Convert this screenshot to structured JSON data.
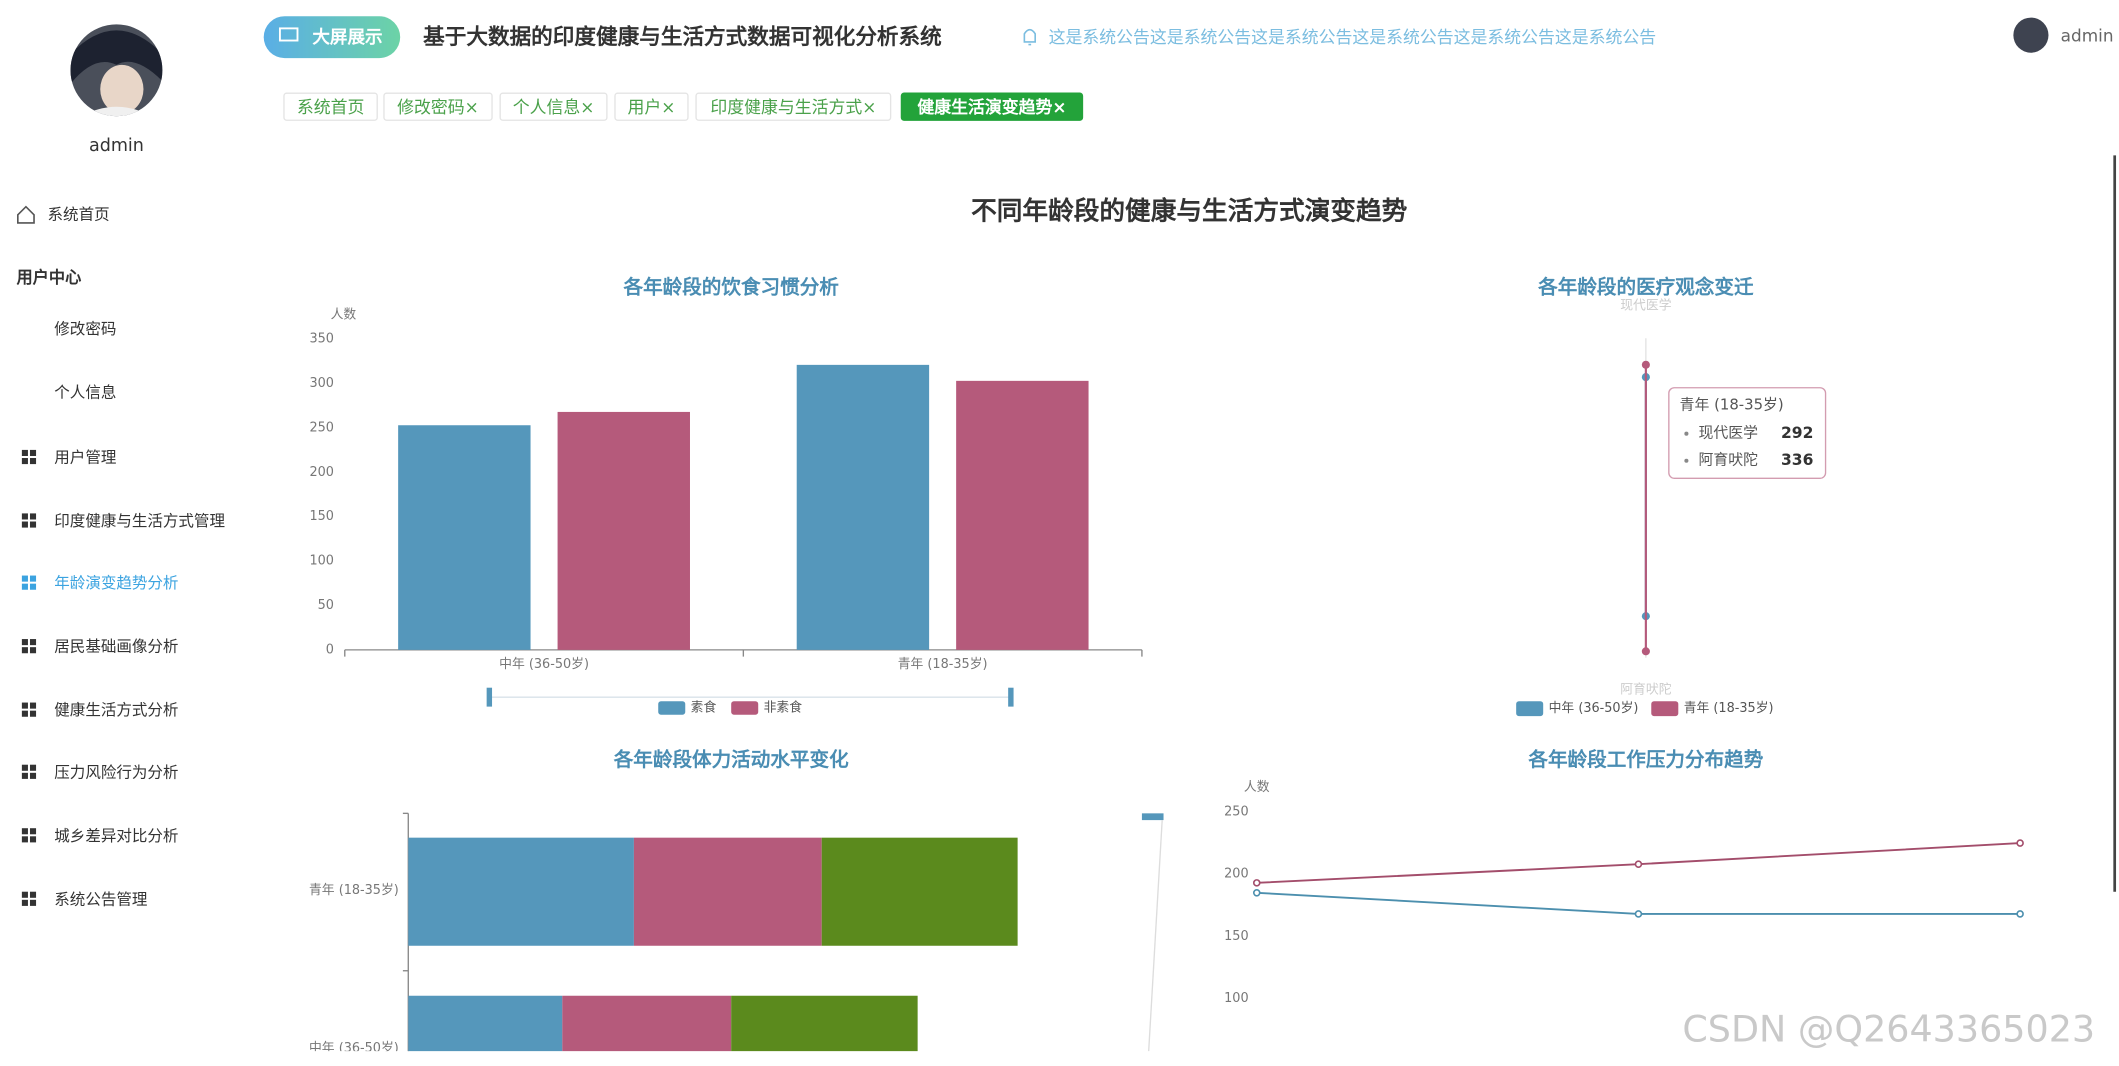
{
  "sidebar": {
    "username": "admin",
    "home": "系统首页",
    "section": "用户中心",
    "items": [
      "修改密码",
      "个人信息",
      "用户管理",
      "印度健康与生活方式管理",
      "年龄演变趋势分析",
      "居民基础画像分析",
      "健康生活方式分析",
      "压力风险行为分析",
      "城乡差异对比分析",
      "系统公告管理"
    ],
    "active_item": 4
  },
  "header": {
    "badge": "大屏展示",
    "title": "基于大数据的印度健康与生活方式数据可视化分析系统",
    "notice": "这是系统公告这是系统公告这是系统公告这是系统公告这是系统公告这是系统公告",
    "user": "admin"
  },
  "tabs": [
    "系统首页",
    "修改密码×",
    "个人信息×",
    "用户×",
    "印度健康与生活方式×",
    "健康生活演变趋势×"
  ],
  "active_tab": 5,
  "page_title": "不同年龄段的健康与生活方式演变趋势",
  "watermark": "CSDN @Q2643365023",
  "chart_data": [
    {
      "type": "bar",
      "title": "各年龄段的饮食习惯分析",
      "y_label": "人数",
      "categories": [
        "中年 (36-50岁)",
        "青年 (18-35岁)"
      ],
      "series": [
        {
          "name": "素食",
          "color": "#5597bb",
          "values": [
            253,
            321
          ]
        },
        {
          "name": "非素食",
          "color": "#b55a7b",
          "values": [
            268,
            303
          ]
        }
      ],
      "ylim": [
        0,
        350
      ],
      "yticks": [
        0,
        50,
        100,
        150,
        200,
        250,
        300,
        350
      ]
    },
    {
      "type": "radar",
      "title": "各年龄段的医疗观念变迁",
      "indicators": [
        "现代医学",
        "阿育吠陀"
      ],
      "rlim": [
        0,
        350
      ],
      "series": [
        {
          "name": "中年 (36-50岁)",
          "color": "#5597bb",
          "values": [
            265,
            259
          ]
        },
        {
          "name": "青年 (18-35岁)",
          "color": "#b55a7b",
          "values": [
            292,
            336
          ]
        }
      ],
      "tooltip_series": 1
    },
    {
      "type": "hbar-stacked",
      "title": "各年龄段体力活动水平变化",
      "categories": [
        "中年 (36-50岁)",
        "青年 (18-35岁)"
      ],
      "series": [
        {
          "color": "#5597bb",
          "values": [
            114,
            167
          ]
        },
        {
          "color": "#b55a7b",
          "values": [
            125,
            139
          ]
        },
        {
          "color": "#5b8a1d",
          "values": [
            138,
            145
          ]
        }
      ],
      "xlim": [
        0,
        548
      ]
    },
    {
      "type": "line",
      "title": "各年龄段工作压力分布趋势",
      "y_label": "人数",
      "categories": [
        null,
        null,
        null
      ],
      "series": [
        {
          "color": "#a34d6b",
          "values": [
            193,
            208,
            225
          ]
        },
        {
          "color": "#4c8fae",
          "values": [
            185,
            168,
            168
          ]
        }
      ],
      "ylim": [
        0,
        250
      ],
      "yticks": [
        100,
        150,
        200,
        250
      ]
    }
  ]
}
